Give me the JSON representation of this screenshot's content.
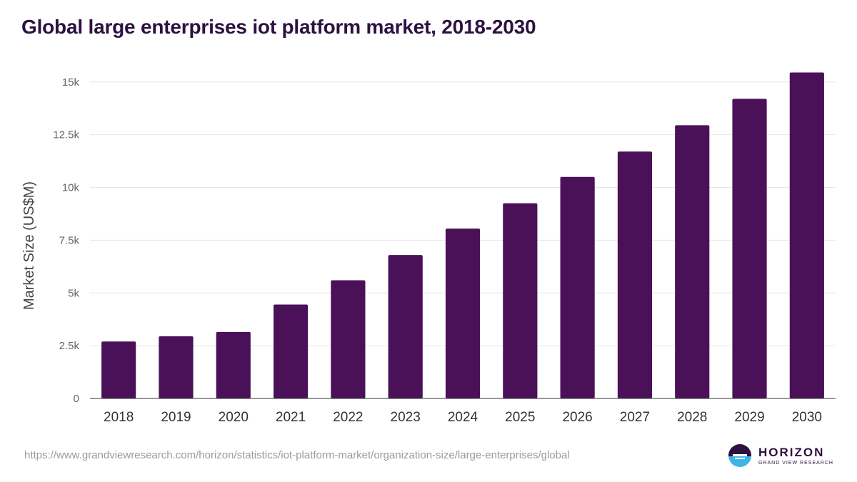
{
  "title": "Global large enterprises iot platform market, 2018-2030",
  "source_url": "https://www.grandviewresearch.com/horizon/statistics/iot-platform-market/organization-size/large-enterprises/global",
  "logo": {
    "name": "HORIZON",
    "sub": "GRAND VIEW RESEARCH"
  },
  "colors": {
    "bar": "#4b1158",
    "title": "#2d1140",
    "grid": "#e6e6e6",
    "axis": "#333333"
  },
  "chart_data": {
    "type": "bar",
    "title": "Global large enterprises iot platform market, 2018-2030",
    "xlabel": "",
    "ylabel": "Market Size (US$M)",
    "categories": [
      "2018",
      "2019",
      "2020",
      "2021",
      "2022",
      "2023",
      "2024",
      "2025",
      "2026",
      "2027",
      "2028",
      "2029",
      "2030"
    ],
    "values": [
      2700,
      2950,
      3150,
      4450,
      5600,
      6800,
      8050,
      9250,
      10500,
      11700,
      12950,
      14200,
      15450
    ],
    "ylim": [
      0,
      15500
    ],
    "yticks": [
      0,
      2500,
      5000,
      7500,
      10000,
      12500,
      15000
    ],
    "ytick_labels": [
      "0",
      "2.5k",
      "5k",
      "7.5k",
      "10k",
      "12.5k",
      "15k"
    ],
    "grid": true,
    "legend": "none"
  }
}
